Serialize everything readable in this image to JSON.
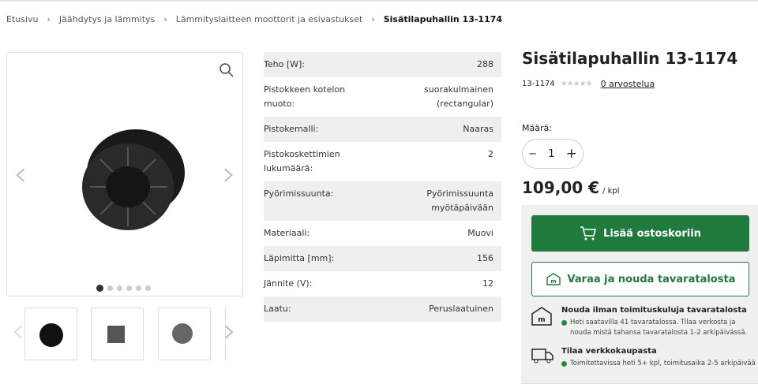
{
  "breadcrumb": [
    "Etusivu",
    "Jäähdytys ja lämmitys",
    "Lämmityslaitteen moottorit ja esivastukset",
    "Sisätilapuhallin 13-1174"
  ],
  "gallery": {
    "image_count": 6,
    "active_index": 0,
    "thumbnails": 3
  },
  "specs": [
    {
      "k": "Teho [W]:",
      "v": "288"
    },
    {
      "k": "Pistokkeen kotelon muoto:",
      "v": "suorakulmainen (rectangular)"
    },
    {
      "k": "Pistokemalli:",
      "v": "Naaras"
    },
    {
      "k": "Pistokoskettimien lukumäärä:",
      "v": "2"
    },
    {
      "k": "Pyörimissuunta:",
      "v": "Pyörimissuunta myötäpäivään"
    },
    {
      "k": "Materiaali:",
      "v": "Muovi"
    },
    {
      "k": "Läpimitta [mm]:",
      "v": "156"
    },
    {
      "k": "Jännite (V):",
      "v": "12"
    },
    {
      "k": "Laatu:",
      "v": "Peruslaatuinen"
    }
  ],
  "product": {
    "title": "Sisätilapuhallin 13-1174",
    "sku": "13-1174",
    "rating": 0,
    "reviews": "0 arvostelua",
    "qty_label": "Määrä:",
    "qty": "1",
    "price": "109,00 €",
    "unit": "/ kpl"
  },
  "actions": {
    "add_to_cart": "Lisää ostoskoriin",
    "reserve": "Varaa ja nouda tavaratalosta"
  },
  "delivery": [
    {
      "title": "Nouda ilman toimituskuluja tavaratalosta",
      "text": "Heti saatavilla 41 tavaratalossa. Tilaa verkosta ja nouda mistä tahansa tavaratalosta 1-2 arkipäivässä.",
      "icon": "store-icon"
    },
    {
      "title": "Tilaa verkkokaupasta",
      "text": "Toimitettavissa heti 5+ kpl, toimitusaika 2-5 arkipäivää",
      "icon": "truck-icon"
    }
  ],
  "colors": {
    "brand_green": "#1f7a3e",
    "status_green": "#1f8a45"
  }
}
